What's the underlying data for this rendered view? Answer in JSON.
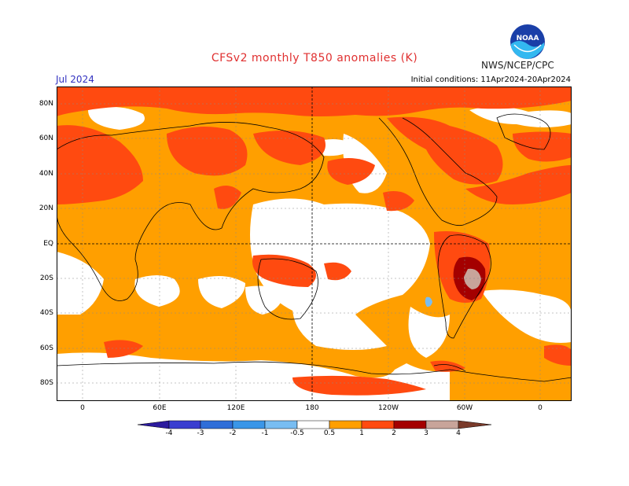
{
  "header": {
    "title": "CFSv2 monthly T850 anomalies (K)",
    "org": "NWS/NCEP/CPC",
    "logo_text": "NOAA",
    "month": "Jul 2024",
    "initial_conditions": "Initial conditions: 11Apr2024-20Apr2024"
  },
  "axes": {
    "lat_labels": [
      "80N",
      "60N",
      "40N",
      "20N",
      "EQ",
      "20S",
      "40S",
      "60S",
      "80S"
    ],
    "lon_labels": [
      "0",
      "60E",
      "120E",
      "180",
      "120W",
      "60W",
      "0"
    ]
  },
  "colorbar": {
    "levels": [
      "-4",
      "-3",
      "-2",
      "-1",
      "-0.5",
      "0.5",
      "1",
      "2",
      "3",
      "4"
    ],
    "colors": [
      "#2c1b9e",
      "#3a3ed0",
      "#2f6ed8",
      "#3a96e8",
      "#78bdf2",
      "#ffffff",
      "#ff9f00",
      "#ff4a10",
      "#a40000",
      "#c8a49a",
      "#7a3a2a"
    ]
  },
  "colors": {
    "anom_05_1": "#ff9f00",
    "anom_1_2": "#ff4a10",
    "anom_2_3": "#a40000",
    "anom_3_4": "#c8a49a",
    "anom_neg_05_1": "#78bdf2"
  }
}
